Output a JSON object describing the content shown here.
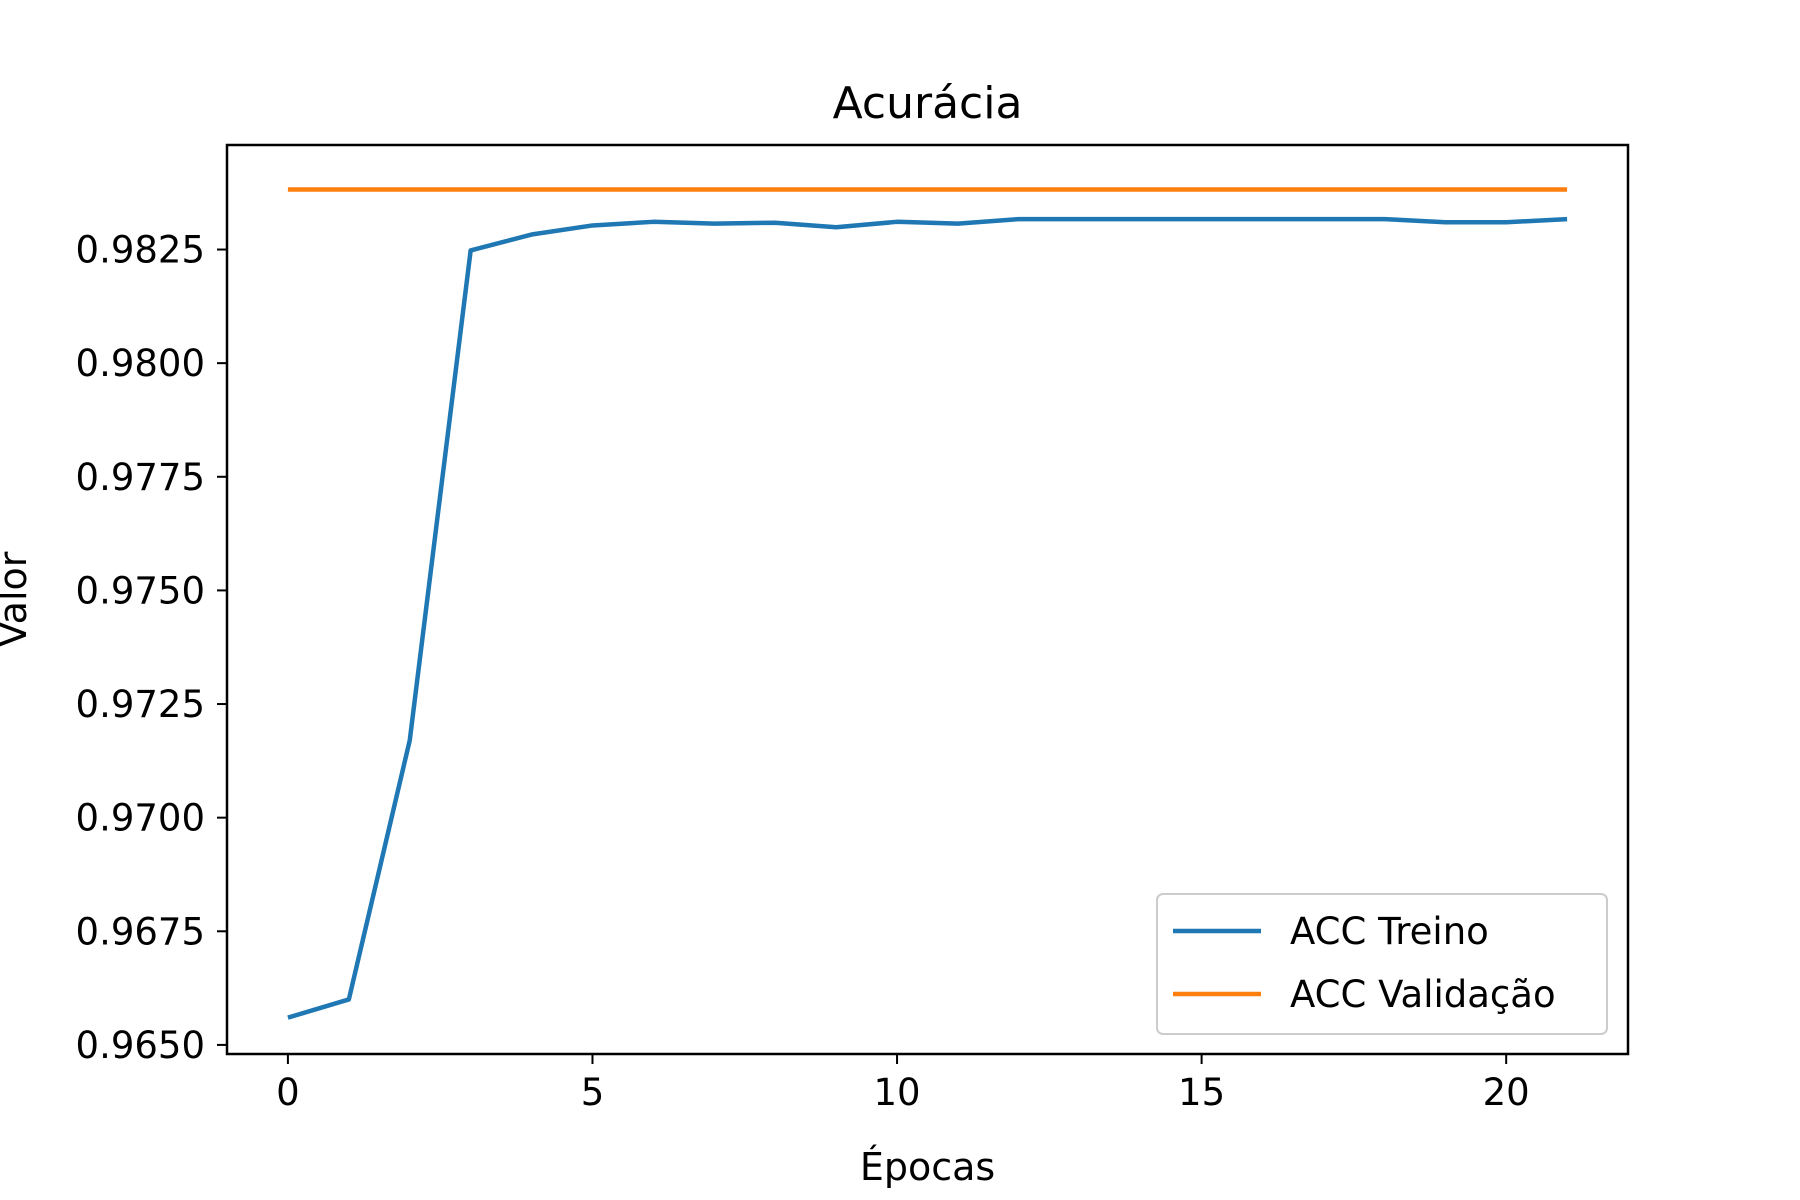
{
  "chart_data": {
    "type": "line",
    "title": "Acurácia",
    "xlabel": "Épocas",
    "ylabel": "Valor",
    "xlim": [
      -1,
      22
    ],
    "ylim": [
      0.9648,
      0.9848
    ],
    "x_ticks": [
      0,
      5,
      10,
      15,
      20
    ],
    "x_tick_labels": [
      "0",
      "5",
      "10",
      "15",
      "20"
    ],
    "y_ticks": [
      0.965,
      0.9675,
      0.97,
      0.9725,
      0.975,
      0.9775,
      0.98,
      0.9825
    ],
    "y_tick_labels": [
      "0.9650",
      "0.9675",
      "0.9700",
      "0.9725",
      "0.9750",
      "0.9775",
      "0.9800",
      "0.9825"
    ],
    "grid": false,
    "legend_position": "bottom-right",
    "x": [
      0,
      1,
      2,
      3,
      4,
      5,
      6,
      7,
      8,
      9,
      10,
      11,
      12,
      13,
      14,
      15,
      16,
      17,
      18,
      19,
      20,
      21
    ],
    "series": [
      {
        "name": "ACC Treino",
        "color": "#1f77b4",
        "values": [
          0.9656,
          0.966,
          0.9717,
          0.98248,
          0.98283,
          0.98303,
          0.98311,
          0.98307,
          0.98309,
          0.98299,
          0.98311,
          0.98307,
          0.98317,
          0.98317,
          0.98317,
          0.98317,
          0.98317,
          0.98317,
          0.98317,
          0.9831,
          0.9831,
          0.98317
        ]
      },
      {
        "name": "ACC Validação",
        "color": "#ff7f0e",
        "values": [
          0.98382,
          0.98382,
          0.98382,
          0.98382,
          0.98382,
          0.98382,
          0.98382,
          0.98382,
          0.98382,
          0.98382,
          0.98382,
          0.98382,
          0.98382,
          0.98382,
          0.98382,
          0.98382,
          0.98382,
          0.98382,
          0.98382,
          0.98382,
          0.98382,
          0.98382
        ]
      }
    ]
  }
}
